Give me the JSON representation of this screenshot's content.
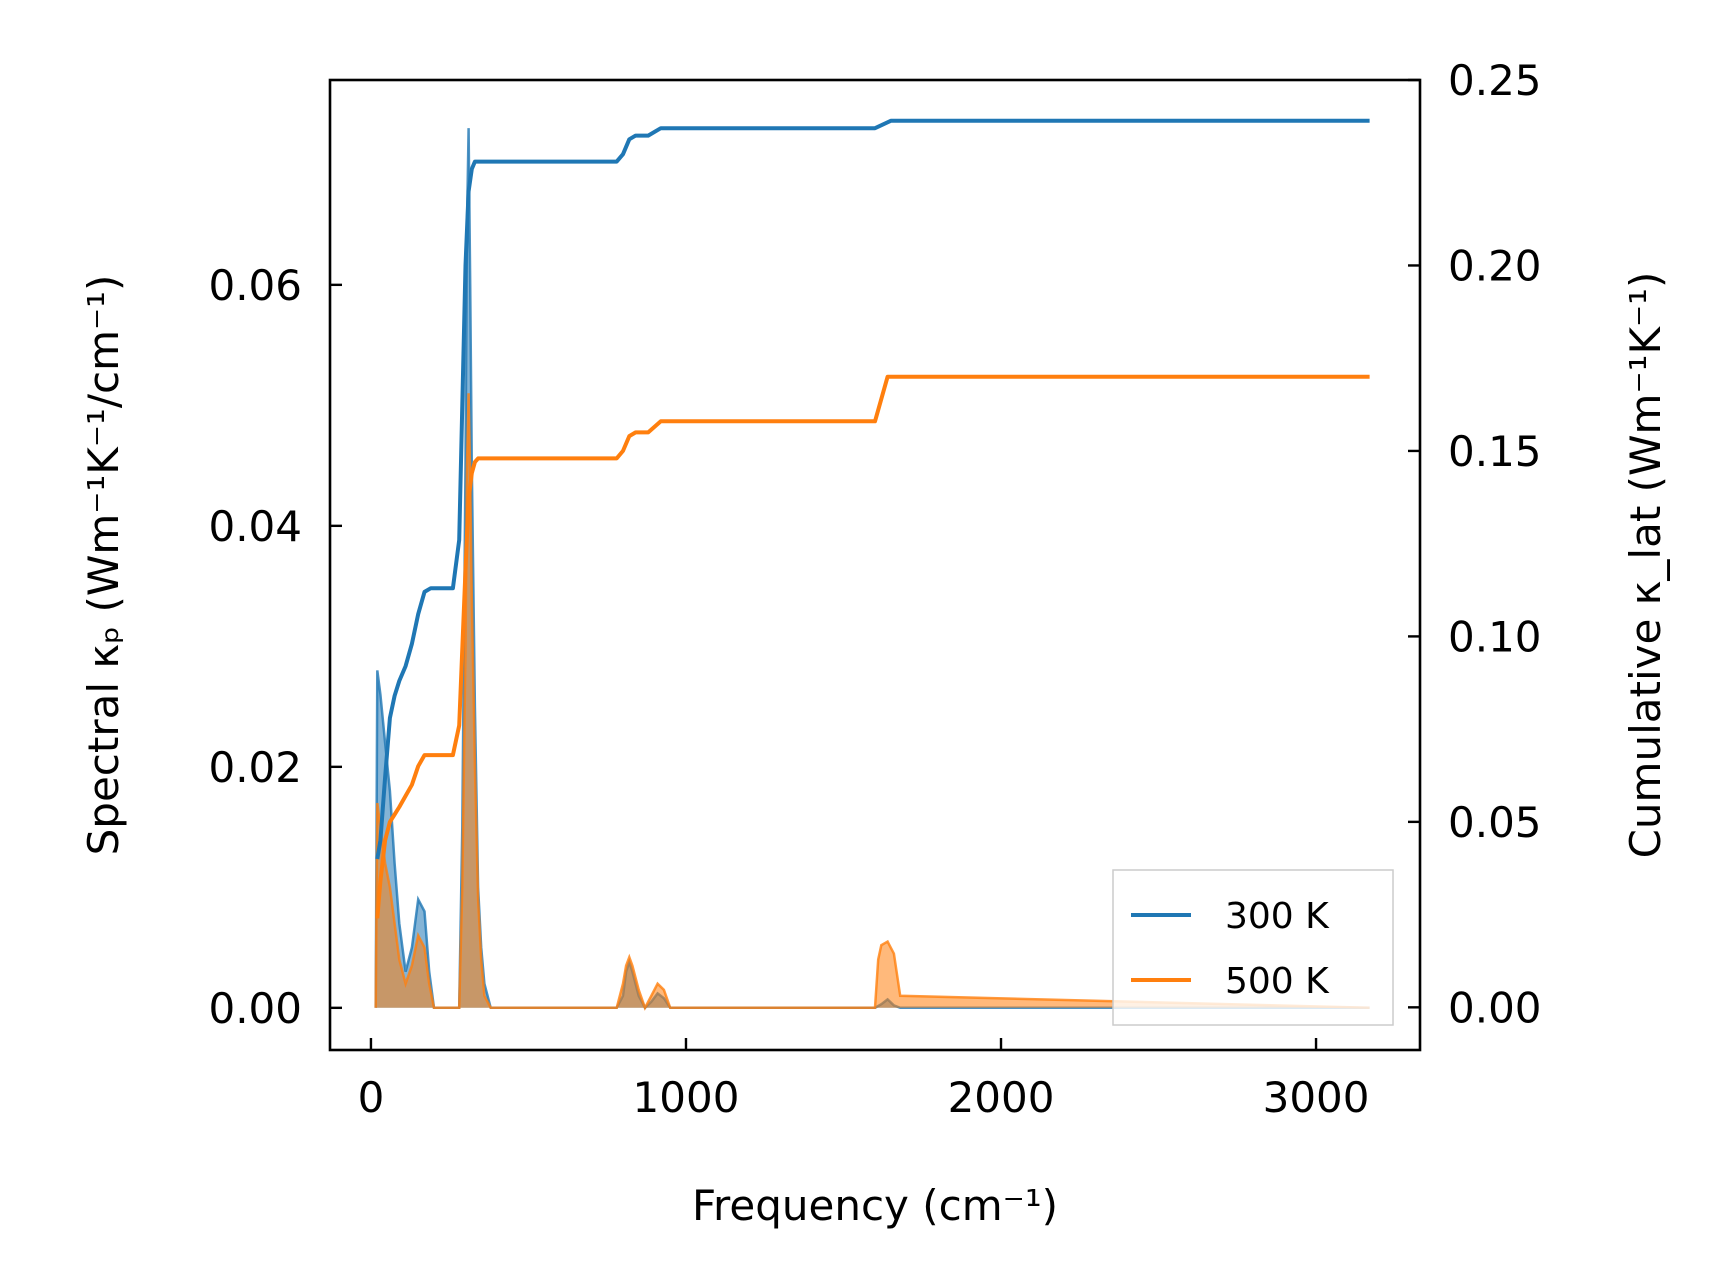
{
  "chart_data": {
    "type": "line",
    "x_axis": {
      "label": "Frequency (cm⁻¹)",
      "range": [
        -130,
        3330
      ],
      "ticks": [
        0,
        1000,
        2000,
        3000
      ],
      "tick_labels": [
        "0",
        "1000",
        "2000",
        "3000"
      ]
    },
    "y_left": {
      "label": "Spectral κₚ (Wm⁻¹K⁻¹/cm⁻¹)",
      "range": [
        -0.0035,
        0.077
      ],
      "ticks": [
        0.0,
        0.02,
        0.04,
        0.06
      ],
      "tick_labels": [
        "0.00",
        "0.02",
        "0.04",
        "0.06"
      ]
    },
    "y_right": {
      "label": "Cumulative κ_lat (Wm⁻¹K⁻¹)",
      "range": [
        -0.0115,
        0.25
      ],
      "ticks": [
        0.0,
        0.05,
        0.1,
        0.15,
        0.2,
        0.25
      ],
      "tick_labels": [
        "0.00",
        "0.05",
        "0.10",
        "0.15",
        "0.20",
        "0.25"
      ]
    },
    "legend": {
      "position": "lower-right",
      "entries": [
        "300 K",
        "500 K"
      ]
    },
    "grid": false,
    "colors": {
      "s300": "#1f77b4",
      "s500": "#ff7f0e"
    },
    "series": [
      {
        "name": "300 K",
        "color": "#1f77b4",
        "axis": "right",
        "kind": "cumulative",
        "x": [
          20,
          30,
          45,
          60,
          75,
          90,
          110,
          130,
          150,
          170,
          190,
          260,
          280,
          300,
          310,
          320,
          330,
          340,
          360,
          780,
          800,
          820,
          840,
          880,
          920,
          950,
          1600,
          1650,
          1700,
          3170
        ],
        "y": [
          0.04,
          0.045,
          0.062,
          0.078,
          0.084,
          0.088,
          0.092,
          0.098,
          0.106,
          0.112,
          0.113,
          0.113,
          0.126,
          0.2,
          0.22,
          0.226,
          0.228,
          0.228,
          0.228,
          0.228,
          0.23,
          0.234,
          0.235,
          0.235,
          0.237,
          0.237,
          0.237,
          0.239,
          0.239,
          0.239
        ]
      },
      {
        "name": "500 K",
        "color": "#ff7f0e",
        "axis": "right",
        "kind": "cumulative",
        "x": [
          20,
          30,
          45,
          60,
          75,
          90,
          110,
          130,
          150,
          170,
          190,
          260,
          280,
          300,
          310,
          320,
          330,
          340,
          360,
          780,
          800,
          820,
          840,
          880,
          920,
          950,
          1600,
          1640,
          1700,
          3170
        ],
        "y": [
          0.024,
          0.034,
          0.045,
          0.05,
          0.052,
          0.054,
          0.057,
          0.06,
          0.065,
          0.068,
          0.068,
          0.068,
          0.076,
          0.118,
          0.137,
          0.144,
          0.147,
          0.148,
          0.148,
          0.148,
          0.15,
          0.154,
          0.155,
          0.155,
          0.158,
          0.158,
          0.158,
          0.17,
          0.17,
          0.17
        ]
      },
      {
        "name": "300 K",
        "color": "#1f77b4",
        "axis": "left",
        "kind": "spectral",
        "x": [
          15,
          20,
          30,
          45,
          60,
          75,
          90,
          110,
          130,
          150,
          170,
          185,
          200,
          260,
          280,
          290,
          300,
          305,
          310,
          315,
          320,
          330,
          340,
          350,
          360,
          380,
          780,
          800,
          810,
          820,
          830,
          850,
          870,
          890,
          910,
          930,
          950,
          970,
          1600,
          1620,
          1640,
          1660,
          1680,
          3170
        ],
        "y": [
          0.0,
          0.028,
          0.026,
          0.022,
          0.018,
          0.012,
          0.007,
          0.003,
          0.005,
          0.009,
          0.008,
          0.003,
          0.0,
          0.0,
          0.0,
          0.015,
          0.045,
          0.065,
          0.073,
          0.06,
          0.045,
          0.025,
          0.01,
          0.005,
          0.002,
          0.0,
          0.0,
          0.001,
          0.003,
          0.0038,
          0.003,
          0.001,
          0.0,
          0.0005,
          0.0012,
          0.0008,
          0.0,
          0.0,
          0.0,
          0.0003,
          0.0007,
          0.0002,
          0.0,
          0.0
        ]
      },
      {
        "name": "500 K",
        "color": "#ff7f0e",
        "axis": "left",
        "kind": "spectral",
        "x": [
          15,
          20,
          30,
          45,
          60,
          75,
          90,
          110,
          130,
          150,
          170,
          185,
          200,
          260,
          280,
          290,
          300,
          305,
          310,
          315,
          320,
          330,
          340,
          350,
          360,
          380,
          780,
          800,
          810,
          820,
          830,
          850,
          870,
          890,
          910,
          930,
          950,
          970,
          1600,
          1610,
          1620,
          1640,
          1660,
          1680,
          3170
        ],
        "y": [
          0.0,
          0.017,
          0.015,
          0.012,
          0.01,
          0.007,
          0.004,
          0.002,
          0.0035,
          0.006,
          0.005,
          0.002,
          0.0,
          0.0,
          0.0,
          0.01,
          0.03,
          0.045,
          0.051,
          0.044,
          0.034,
          0.02,
          0.009,
          0.004,
          0.001,
          0.0,
          0.0,
          0.002,
          0.0035,
          0.0042,
          0.0035,
          0.0015,
          0.0,
          0.001,
          0.002,
          0.0015,
          0.0,
          0.0,
          0.0,
          0.004,
          0.0052,
          0.0055,
          0.0045,
          0.001,
          0.0
        ]
      }
    ]
  }
}
